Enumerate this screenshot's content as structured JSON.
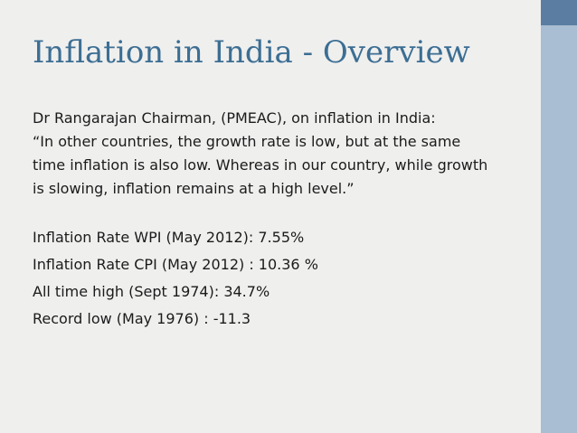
{
  "slide": {
    "title": "Inflation in India - Overview",
    "quote_intro": "Dr Rangarajan Chairman, (PMEAC), on inflation in India:",
    "quote_lines": [
      "“In other countries, the growth rate is low, but at the same",
      "time inflation is also low. Whereas in our country, while growth",
      "is slowing, inflation remains at a high level.”"
    ],
    "stats": [
      "Inflation Rate WPI (May 2012):  7.55%",
      "Inflation Rate CPI (May 2012) : 10.36 %",
      "All time high (Sept 1974): 34.7%",
      "Record low (May 1976) : -11.3"
    ]
  },
  "theme": {
    "background": "#efefee",
    "title_color": "#3c6e93",
    "text_color": "#1b1b1b",
    "bar_dark": "#5b7da1",
    "bar_light": "#a9bdd3"
  }
}
